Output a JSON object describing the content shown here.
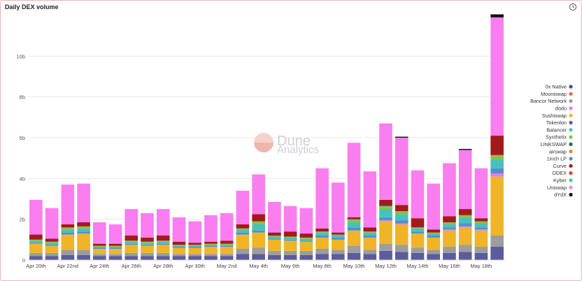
{
  "title": "Daily DEX volume",
  "watermark": {
    "line1": "Dune",
    "line2": "Analytics"
  },
  "chart_data": {
    "type": "bar",
    "stacked": true,
    "ylim": [
      0,
      12
    ],
    "yticks": [
      0,
      2,
      4,
      6,
      8,
      10
    ],
    "ytick_labels": [
      "0",
      "2b",
      "4b",
      "6b",
      "8b",
      "10b"
    ],
    "grid": true,
    "legend_position": "right",
    "xtick_labels": [
      "Apr 20th",
      "Apr 22nd",
      "Apr 24th",
      "Apr 26th",
      "Apr 28th",
      "Apr 30th",
      "May 2nd",
      "May 4th",
      "May 6th",
      "May 8th",
      "May 10th",
      "May 12th",
      "May 14th",
      "May 16th",
      "May 18th"
    ],
    "legend": [
      "0x Native",
      "Mooniswap",
      "Bancor Network",
      "dodo",
      "Sushiswap",
      "Tokenlon",
      "Balancer",
      "Synthetix",
      "LINKSWAP",
      "airswap",
      "1inch LP",
      "Curve",
      "DDEX",
      "Kyber",
      "Uniswap",
      "dYdX"
    ],
    "stack_colors": {
      "Tokenlon": "#5b5b9e",
      "Bancor Network": "#9d9d9d",
      "Sushiswap": "#f0b429",
      "dodo": "#e27ee5",
      "Balancer": "#48c2b8",
      "Synthetix": "#8bbf3e",
      "LINKSWAP": "#226f3a",
      "airswap": "#e8842f",
      "1inch LP": "#4f8fd6",
      "Curve": "#a31a1a",
      "Mooniswap": "#e8644a",
      "DDEX": "#e33b3b",
      "Kyber": "#4ecb8c",
      "Uniswap": "#fa7ef0",
      "dYdX": "#111111",
      "0x Native": "#4a4a8c"
    },
    "categories": [
      "Apr 20",
      "Apr 21",
      "Apr 22",
      "Apr 23",
      "Apr 24",
      "Apr 25",
      "Apr 26",
      "Apr 27",
      "Apr 28",
      "Apr 29",
      "Apr 30",
      "May 1",
      "May 2",
      "May 3",
      "May 4",
      "May 5",
      "May 6",
      "May 7",
      "May 8",
      "May 9",
      "May 10",
      "May 11",
      "May 12",
      "May 13",
      "May 14",
      "May 15",
      "May 16",
      "May 17",
      "May 18",
      "May 19"
    ],
    "series": [
      {
        "name": "Tokenlon",
        "values": [
          0.2,
          0.2,
          0.25,
          0.25,
          0.2,
          0.2,
          0.2,
          0.2,
          0.2,
          0.2,
          0.2,
          0.2,
          0.2,
          0.3,
          0.3,
          0.25,
          0.25,
          0.25,
          0.3,
          0.3,
          0.35,
          0.3,
          0.45,
          0.4,
          0.35,
          0.3,
          0.35,
          0.4,
          0.35,
          0.65
        ]
      },
      {
        "name": "Bancor Network",
        "values": [
          0.15,
          0.15,
          0.25,
          0.25,
          0.1,
          0.1,
          0.15,
          0.15,
          0.15,
          0.1,
          0.1,
          0.1,
          0.1,
          0.25,
          0.3,
          0.2,
          0.2,
          0.2,
          0.25,
          0.2,
          0.35,
          0.2,
          0.35,
          0.35,
          0.25,
          0.2,
          0.3,
          0.35,
          0.3,
          0.55
        ]
      },
      {
        "name": "Sushiswap",
        "values": [
          0.45,
          0.35,
          0.75,
          0.8,
          0.25,
          0.25,
          0.4,
          0.35,
          0.4,
          0.3,
          0.3,
          0.35,
          0.35,
          0.7,
          0.75,
          0.55,
          0.5,
          0.45,
          0.55,
          0.5,
          0.75,
          0.6,
          1.1,
          1.0,
          0.7,
          0.6,
          0.8,
          0.85,
          0.8,
          2.9
        ]
      },
      {
        "name": "dodo",
        "values": [
          0.0,
          0.0,
          0.0,
          0.0,
          0.0,
          0.0,
          0.0,
          0.0,
          0.0,
          0.0,
          0.0,
          0.0,
          0.0,
          0.0,
          0.0,
          0.0,
          0.0,
          0.0,
          0.0,
          0.0,
          0.0,
          0.0,
          0.05,
          0.05,
          0.0,
          0.0,
          0.05,
          0.05,
          0.05,
          0.15
        ]
      },
      {
        "name": "1inch LP",
        "values": [
          0.05,
          0.05,
          0.1,
          0.1,
          0.05,
          0.05,
          0.05,
          0.05,
          0.05,
          0.05,
          0.05,
          0.05,
          0.05,
          0.1,
          0.1,
          0.05,
          0.05,
          0.05,
          0.1,
          0.1,
          0.15,
          0.1,
          0.15,
          0.15,
          0.1,
          0.1,
          0.1,
          0.15,
          0.1,
          0.25
        ]
      },
      {
        "name": "Balancer",
        "values": [
          0.1,
          0.1,
          0.15,
          0.15,
          0.05,
          0.05,
          0.1,
          0.1,
          0.1,
          0.05,
          0.05,
          0.05,
          0.05,
          0.15,
          0.3,
          0.1,
          0.1,
          0.1,
          0.15,
          0.1,
          0.25,
          0.15,
          0.4,
          0.3,
          0.15,
          0.1,
          0.15,
          0.3,
          0.2,
          0.45
        ]
      },
      {
        "name": "Synthetix",
        "values": [
          0.05,
          0.05,
          0.1,
          0.1,
          0.05,
          0.05,
          0.05,
          0.05,
          0.05,
          0.05,
          0.05,
          0.05,
          0.05,
          0.05,
          0.15,
          0.05,
          0.05,
          0.05,
          0.05,
          0.05,
          0.1,
          0.05,
          0.1,
          0.1,
          0.05,
          0.05,
          0.1,
          0.1,
          0.1,
          0.15
        ]
      },
      {
        "name": "Kyber",
        "values": [
          0.0,
          0.0,
          0.0,
          0.0,
          0.0,
          0.0,
          0.0,
          0.0,
          0.0,
          0.0,
          0.0,
          0.0,
          0.0,
          0.0,
          0.0,
          0.0,
          0.0,
          0.0,
          0.0,
          0.0,
          0.05,
          0.0,
          0.05,
          0.05,
          0.0,
          0.0,
          0.0,
          0.0,
          0.0,
          0.05
        ]
      },
      {
        "name": "Curve",
        "values": [
          0.25,
          0.15,
          0.15,
          0.2,
          0.1,
          0.1,
          0.25,
          0.2,
          0.25,
          0.15,
          0.1,
          0.1,
          0.15,
          0.2,
          0.35,
          0.15,
          0.25,
          0.2,
          0.15,
          0.1,
          0.1,
          0.2,
          0.3,
          0.3,
          0.45,
          0.15,
          0.3,
          0.3,
          0.15,
          0.95
        ]
      },
      {
        "name": "Uniswap",
        "values": [
          1.7,
          1.5,
          1.95,
          1.9,
          1.05,
          0.95,
          1.3,
          1.2,
          1.3,
          1.2,
          1.05,
          1.3,
          1.35,
          1.65,
          1.95,
          1.5,
          1.25,
          1.25,
          2.95,
          2.45,
          3.65,
          2.75,
          3.75,
          3.3,
          2.35,
          2.25,
          2.6,
          2.9,
          2.45,
          5.8
        ]
      },
      {
        "name": "dYdX",
        "values": [
          0.0,
          0.0,
          0.0,
          0.0,
          0.0,
          0.0,
          0.0,
          0.0,
          0.0,
          0.0,
          0.0,
          0.0,
          0.0,
          0.0,
          0.0,
          0.0,
          0.0,
          0.0,
          0.0,
          0.0,
          0.0,
          0.0,
          0.0,
          0.05,
          0.0,
          0.0,
          0.0,
          0.05,
          0.0,
          0.15
        ]
      }
    ]
  }
}
